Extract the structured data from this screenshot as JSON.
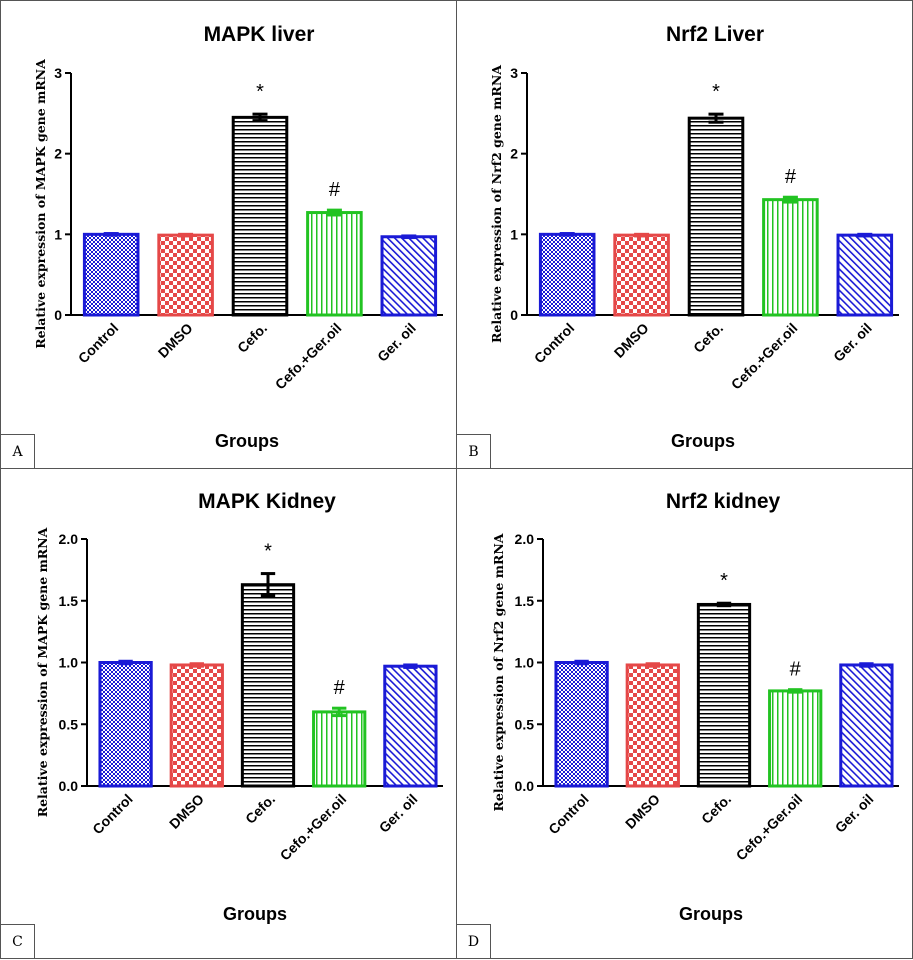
{
  "chart_data": [
    {
      "type": "bar",
      "panel_label": "A",
      "title": "MAPK liver",
      "xlabel": "Groups",
      "ylabel": "Relative expression of MAPK gene mRNA",
      "ylim": [
        0,
        3
      ],
      "yticks": [
        "0",
        "1",
        "2",
        "3"
      ],
      "categories": [
        "Control",
        "DMSO",
        "Cefo.",
        "Cefo.+Ger.oil",
        "Ger. oil"
      ],
      "values": [
        1.0,
        0.99,
        2.45,
        1.27,
        0.97
      ],
      "errors": [
        0.01,
        0.01,
        0.04,
        0.03,
        0.01
      ],
      "annotations": [
        "",
        "",
        "*",
        "#",
        ""
      ]
    },
    {
      "type": "bar",
      "panel_label": "B",
      "title": "Nrf2 Liver",
      "xlabel": "Groups",
      "ylabel": "Relative expression of Nrf2 gene mRNA",
      "ylim": [
        0,
        3
      ],
      "yticks": [
        "0",
        "1",
        "2",
        "3"
      ],
      "categories": [
        "Control",
        "DMSO",
        "Cefo.",
        "Cefo.+Ger.oil",
        "Ger. oil"
      ],
      "values": [
        1.0,
        0.99,
        2.44,
        1.43,
        0.99
      ],
      "errors": [
        0.01,
        0.01,
        0.05,
        0.03,
        0.01
      ],
      "annotations": [
        "",
        "",
        "*",
        "#",
        ""
      ]
    },
    {
      "type": "bar",
      "panel_label": "C",
      "title": "MAPK Kidney",
      "xlabel": "Groups",
      "ylabel": "Relative expression of MAPK gene mRNA",
      "ylim": [
        0,
        2
      ],
      "yticks": [
        "0.0",
        "0.5",
        "1.0",
        "1.5",
        "2.0"
      ],
      "categories": [
        "Control",
        "DMSO",
        "Cefo.",
        "Cefo.+Ger.oil",
        "Ger. oil"
      ],
      "values": [
        1.0,
        0.98,
        1.63,
        0.6,
        0.97
      ],
      "errors": [
        0.01,
        0.01,
        0.09,
        0.03,
        0.01
      ],
      "annotations": [
        "",
        "",
        "*",
        "#",
        ""
      ]
    },
    {
      "type": "bar",
      "panel_label": "D",
      "title": "Nrf2 kidney",
      "xlabel": "Groups",
      "ylabel": "Relative expression of Nrf2 gene mRNA",
      "ylim": [
        0,
        2
      ],
      "yticks": [
        "0.0",
        "0.5",
        "1.0",
        "1.5",
        "2.0"
      ],
      "categories": [
        "Control",
        "DMSO",
        "Cefo.",
        "Cefo.+Ger.oil",
        "Ger. oil"
      ],
      "values": [
        1.0,
        0.98,
        1.47,
        0.77,
        0.98
      ],
      "errors": [
        0.01,
        0.01,
        0.01,
        0.01,
        0.01
      ],
      "annotations": [
        "",
        "",
        "*",
        "#",
        ""
      ]
    }
  ],
  "colors": {
    "control": "#1a1ad6",
    "dmso": "#e54848",
    "cefo": "#000000",
    "cefo_ger": "#22c322",
    "ger_oil": "#1a1ad6"
  }
}
